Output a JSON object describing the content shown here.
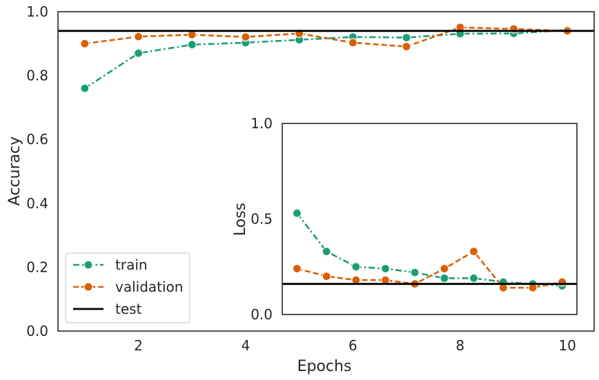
{
  "chart_data": [
    {
      "type": "line",
      "xlabel": "Epochs",
      "ylabel": "Accuracy",
      "xlim": [
        0.5,
        10.5
      ],
      "ylim": [
        0,
        1.0
      ],
      "xticks": [
        "2",
        "4",
        "6",
        "8",
        "10"
      ],
      "yticks": [
        "0.0",
        "0.2",
        "0.4",
        "0.6",
        "0.8",
        "1.0"
      ],
      "grid": false,
      "legend": "lower-left",
      "series": [
        {
          "name": "train",
          "color": "#1b9e77",
          "style": "dash-dot",
          "x": [
            1,
            2,
            3,
            4,
            5,
            6,
            7,
            8,
            9,
            10
          ],
          "y": [
            0.76,
            0.87,
            0.897,
            0.903,
            0.912,
            0.921,
            0.919,
            0.931,
            0.932,
            0.943
          ]
        },
        {
          "name": "validation",
          "color": "#d95f02",
          "style": "dashed",
          "x": [
            1,
            2,
            3,
            4,
            5,
            6,
            7,
            8,
            9,
            10
          ],
          "y": [
            0.9,
            0.922,
            0.928,
            0.921,
            0.932,
            0.903,
            0.891,
            0.951,
            0.946,
            0.94
          ]
        }
      ],
      "hlines": [
        {
          "name": "test",
          "color": "#000000",
          "y": 0.94
        }
      ]
    },
    {
      "type": "line",
      "inset": true,
      "xlabel": "",
      "ylabel": "Loss",
      "xlim": [
        0.5,
        10.5
      ],
      "ylim": [
        0,
        1.0
      ],
      "yticks": [
        "0.0",
        "0.5",
        "1.0"
      ],
      "grid": false,
      "series": [
        {
          "name": "train",
          "color": "#1b9e77",
          "style": "dash-dot",
          "x": [
            1,
            2,
            3,
            4,
            5,
            6,
            7,
            8,
            9,
            10
          ],
          "y": [
            0.53,
            0.33,
            0.25,
            0.24,
            0.22,
            0.19,
            0.19,
            0.17,
            0.16,
            0.15
          ]
        },
        {
          "name": "validation",
          "color": "#d95f02",
          "style": "dashed",
          "x": [
            1,
            2,
            3,
            4,
            5,
            6,
            7,
            8,
            9,
            10
          ],
          "y": [
            0.24,
            0.2,
            0.18,
            0.18,
            0.16,
            0.24,
            0.33,
            0.14,
            0.14,
            0.17
          ]
        }
      ],
      "hlines": [
        {
          "name": "test",
          "color": "#000000",
          "y": 0.16
        }
      ]
    }
  ]
}
